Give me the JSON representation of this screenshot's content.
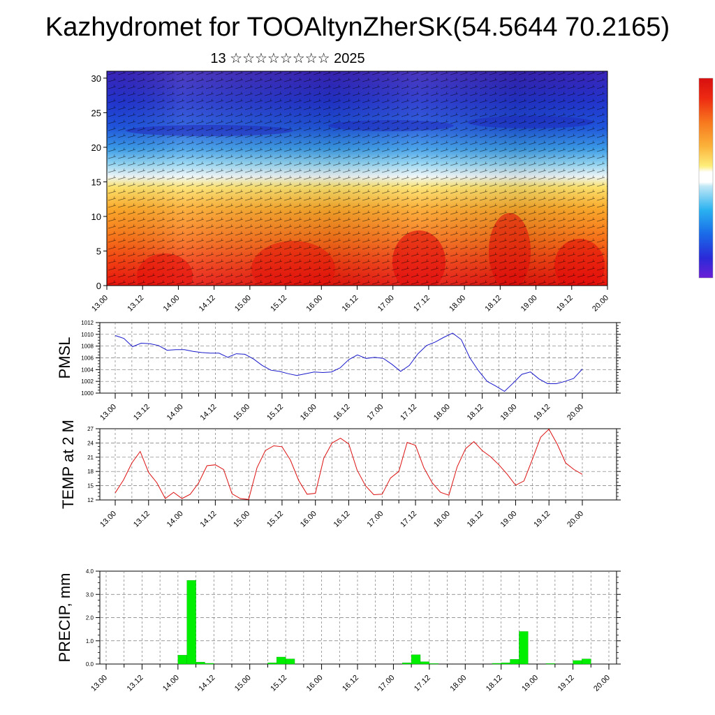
{
  "title": "Kazhydromet for TOOAltynZherSK(54.5644 70.2165)",
  "subtitle": "13 ☆☆☆☆☆☆☆☆ 2025",
  "chart_data": [
    {
      "type": "heatmap",
      "name": "wind_temperature_cross_section",
      "x_tick_labels": [
        "13.00",
        "13.12",
        "14.00",
        "14.12",
        "15.00",
        "15.12",
        "16.00",
        "16.12",
        "17.00",
        "17.12",
        "18.00",
        "18.12",
        "19.00",
        "19.12",
        "20.00"
      ],
      "y_tick_labels": [
        "0",
        "5",
        "10",
        "15",
        "20",
        "25",
        "30"
      ],
      "ylim": [
        0,
        31
      ],
      "colorbar": "red (low levels) → orange → yellow → light blue → blue/violet (upper levels)"
    },
    {
      "type": "line",
      "ylabel": "PMSL",
      "ylim": [
        1000,
        1012
      ],
      "y_tick_labels": [
        "1000",
        "1002",
        "1004",
        "1006",
        "1008",
        "1010",
        "1012"
      ],
      "x_tick_labels": [
        "13.00",
        "13.12",
        "14.00",
        "14.12",
        "15.00",
        "15.12",
        "16.00",
        "16.12",
        "17.00",
        "17.12",
        "18.00",
        "18.12",
        "19.00",
        "19.12",
        "20.00"
      ],
      "color": "#1a1acc",
      "values": [
        1009.8,
        1009.3,
        1007.9,
        1008.5,
        1008.4,
        1008.1,
        1007.3,
        1007.4,
        1007.4,
        1007.1,
        1006.9,
        1006.8,
        1006.8,
        1006.1,
        1006.7,
        1006.6,
        1005.8,
        1004.7,
        1003.9,
        1003.7,
        1003.3,
        1003.0,
        1003.3,
        1003.6,
        1003.5,
        1003.6,
        1004.3,
        1005.7,
        1006.5,
        1005.9,
        1006.1,
        1005.9,
        1004.9,
        1003.7,
        1004.7,
        1006.7,
        1008.1,
        1008.7,
        1009.5,
        1010.2,
        1009.1,
        1006.0,
        1003.8,
        1002.0,
        1001.2,
        1000.3,
        1001.7,
        1003.2,
        1003.6,
        1002.4,
        1001.6,
        1001.6,
        1002.0,
        1002.5,
        1004.1
      ]
    },
    {
      "type": "line",
      "ylabel": "TEMP at 2 M",
      "ylim": [
        12,
        27
      ],
      "y_tick_labels": [
        "12",
        "15",
        "18",
        "21",
        "24",
        "27"
      ],
      "x_tick_labels": [
        "13.00",
        "13.12",
        "14.00",
        "14.12",
        "15.00",
        "15.12",
        "16.00",
        "16.12",
        "17.00",
        "17.12",
        "18.00",
        "18.12",
        "19.00",
        "19.12",
        "20.00"
      ],
      "color": "#dd1111",
      "values": [
        13.5,
        16.2,
        19.8,
        22.2,
        17.8,
        15.6,
        12.3,
        13.6,
        12.3,
        13.2,
        15.6,
        19.2,
        19.4,
        18.4,
        13.3,
        12.3,
        12.1,
        18.8,
        22.4,
        23.4,
        23.2,
        20.4,
        16.1,
        13.2,
        13.4,
        20.8,
        24.0,
        25.0,
        23.8,
        18.3,
        15.0,
        13.1,
        13.2,
        16.6,
        18.0,
        24.1,
        23.5,
        18.8,
        15.6,
        13.6,
        13.0,
        19.0,
        22.8,
        24.3,
        22.4,
        21.1,
        19.4,
        17.4,
        15.1,
        16.0,
        20.5,
        25.2,
        26.9,
        23.7,
        19.8,
        18.4,
        17.4
      ]
    },
    {
      "type": "bar",
      "ylabel": "PRECIP, mm",
      "ylim": [
        0,
        4
      ],
      "y_tick_labels": [
        "0.0",
        "1.0",
        "2.0",
        "3.0",
        "4.0"
      ],
      "x_tick_labels": [
        "13.00",
        "13.12",
        "14.00",
        "14.12",
        "15.00",
        "15.12",
        "16.00",
        "16.12",
        "17.00",
        "17.12",
        "18.00",
        "18.12",
        "19.00",
        "19.12",
        "20.00"
      ],
      "color": "#00ee00",
      "values": [
        0,
        0,
        0,
        0,
        0,
        0,
        0,
        0,
        0.38,
        3.6,
        0.08,
        0.03,
        0,
        0,
        0,
        0,
        0,
        0,
        0.05,
        0.3,
        0.22,
        0,
        0,
        0,
        0,
        0,
        0,
        0,
        0,
        0,
        0,
        0,
        0,
        0.05,
        0.4,
        0.1,
        0.02,
        0,
        0,
        0,
        0,
        0,
        0,
        0.03,
        0.05,
        0.2,
        1.4,
        0,
        0,
        0.02,
        0,
        0,
        0.15,
        0.22,
        0,
        0,
        0
      ]
    }
  ]
}
